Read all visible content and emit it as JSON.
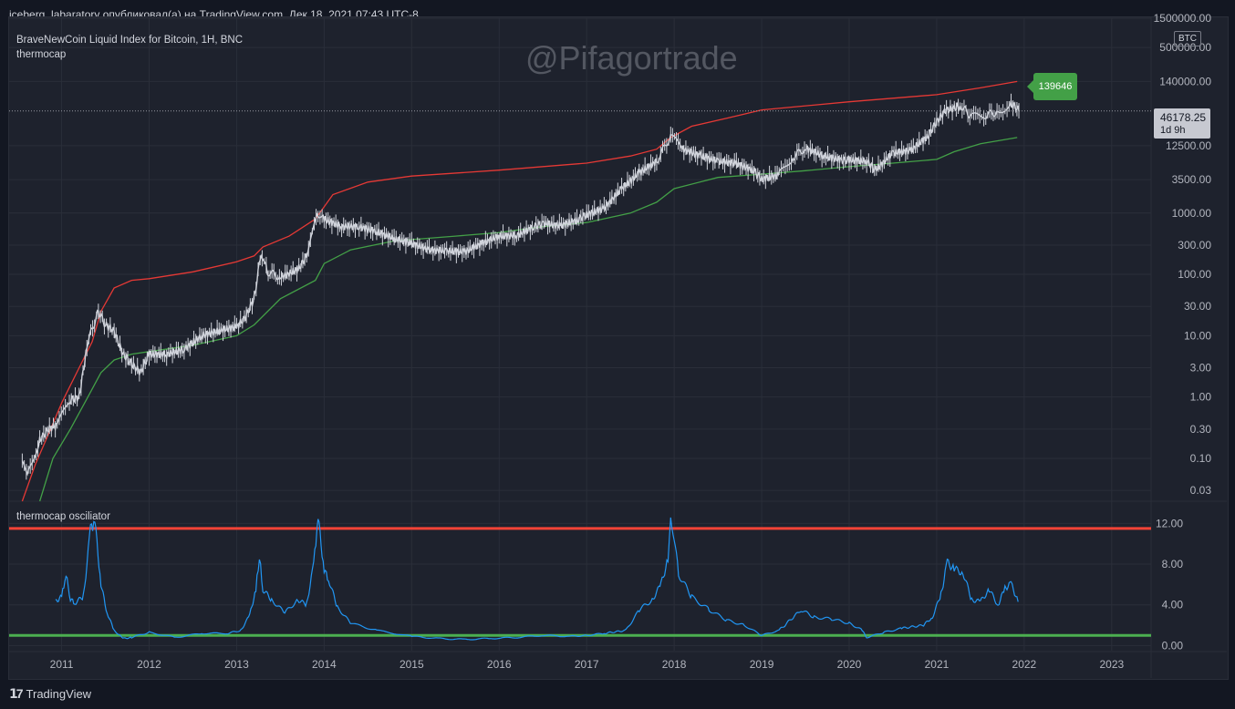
{
  "header": {
    "published_line": "iceberg_labaratory опубликовал(а) на TradingView.com, Дек 18, 2021 07:43 UTC-8"
  },
  "main_pane": {
    "symbol_title": "BraveNewCoin Liquid Index for Bitcoin, 1H, BNC",
    "indicator_name": "thermocap",
    "watermark": "@Pifagortrade",
    "currency_badge": "BTC",
    "last_price": "46178.25",
    "countdown": "1d 9h",
    "upper_band_value_label": "139646"
  },
  "osc_pane": {
    "title": "thermocap osciliator"
  },
  "footer": {
    "brand": "TradingView"
  },
  "colors": {
    "upper_band": "#e53935",
    "lower_band": "#43a047",
    "price": "#d1d4dc",
    "oscillator": "#2196f3",
    "osc_top_line": "#f44336",
    "osc_bottom_line": "#4caf50"
  },
  "chart_data": [
    {
      "type": "line",
      "title": "BraveNewCoin Liquid Index for Bitcoin, 1H, BNC — thermocap",
      "yscale": "log",
      "ylim": [
        0.02,
        1500000
      ],
      "y_ticks": [
        "1500000.00",
        "500000.00",
        "140000.00",
        "12500.00",
        "3500.00",
        "1000.00",
        "300.00",
        "100.00",
        "30.00",
        "10.00",
        "3.00",
        "1.00",
        "0.30",
        "0.10",
        "0.03"
      ],
      "x_ticks": [
        "2011",
        "2012",
        "2013",
        "2014",
        "2015",
        "2016",
        "2017",
        "2018",
        "2019",
        "2020",
        "2021",
        "2022",
        "2023"
      ],
      "xlim": [
        2010.4,
        2023.45
      ],
      "series": [
        {
          "name": "price",
          "x": [
            2010.55,
            2010.62,
            2010.75,
            2010.85,
            2010.95,
            2011.1,
            2011.2,
            2011.3,
            2011.42,
            2011.5,
            2011.6,
            2011.7,
            2011.8,
            2011.9,
            2012.0,
            2012.2,
            2012.4,
            2012.6,
            2012.8,
            2013.0,
            2013.1,
            2013.2,
            2013.28,
            2013.35,
            2013.5,
            2013.7,
            2013.8,
            2013.93,
            2014.0,
            2014.2,
            2014.4,
            2014.6,
            2014.8,
            2015.0,
            2015.2,
            2015.4,
            2015.6,
            2015.8,
            2016.0,
            2016.2,
            2016.4,
            2016.5,
            2016.7,
            2016.9,
            2017.0,
            2017.2,
            2017.4,
            2017.6,
            2017.8,
            2017.96,
            2018.1,
            2018.3,
            2018.5,
            2018.7,
            2018.9,
            2019.0,
            2019.2,
            2019.35,
            2019.5,
            2019.7,
            2019.9,
            2020.0,
            2020.2,
            2020.3,
            2020.5,
            2020.7,
            2020.9,
            2021.0,
            2021.1,
            2021.28,
            2021.4,
            2021.55,
            2021.7,
            2021.85,
            2021.95
          ],
          "values": [
            0.08,
            0.06,
            0.2,
            0.3,
            0.35,
            0.9,
            1.0,
            8,
            25,
            15,
            12,
            5,
            3.5,
            2.5,
            5,
            5,
            6,
            10,
            12,
            14,
            20,
            40,
            230,
            110,
            90,
            120,
            200,
            1000,
            800,
            600,
            600,
            500,
            380,
            320,
            250,
            240,
            230,
            320,
            420,
            430,
            600,
            680,
            620,
            780,
            950,
            1200,
            2500,
            4500,
            7000,
            18000,
            11000,
            8500,
            7000,
            6500,
            5000,
            3600,
            4200,
            8000,
            11500,
            8500,
            7300,
            7200,
            7000,
            5000,
            9500,
            10500,
            18000,
            31000,
            47000,
            55000,
            37000,
            39000,
            45000,
            60000,
            46178
          ]
        },
        {
          "name": "thermocap upper band",
          "x": [
            2010.55,
            2010.7,
            2010.85,
            2011.0,
            2011.2,
            2011.35,
            2011.45,
            2011.6,
            2011.8,
            2012.0,
            2012.5,
            2013.0,
            2013.2,
            2013.3,
            2013.6,
            2013.9,
            2014.1,
            2014.5,
            2015.0,
            2016.0,
            2017.0,
            2017.5,
            2017.8,
            2017.96,
            2018.2,
            2018.6,
            2019.0,
            2020.0,
            2021.0,
            2021.5,
            2021.92
          ],
          "values": [
            0.02,
            0.08,
            0.25,
            0.8,
            3,
            8,
            25,
            60,
            80,
            85,
            110,
            160,
            200,
            280,
            420,
            800,
            2000,
            3200,
            4000,
            5000,
            6500,
            8500,
            11000,
            17000,
            26000,
            35000,
            48000,
            65000,
            85000,
            110000,
            139646
          ]
        },
        {
          "name": "thermocap lower band",
          "x": [
            2010.75,
            2010.9,
            2011.1,
            2011.3,
            2011.45,
            2011.6,
            2011.8,
            2012.0,
            2012.5,
            2013.0,
            2013.2,
            2013.5,
            2013.9,
            2014.0,
            2014.3,
            2014.8,
            2015.5,
            2016.0,
            2016.5,
            2017.0,
            2017.5,
            2017.8,
            2018.0,
            2018.5,
            2019.0,
            2019.5,
            2020.0,
            2020.5,
            2021.0,
            2021.2,
            2021.5,
            2021.92
          ],
          "values": [
            0.02,
            0.1,
            0.3,
            1.0,
            2.5,
            4,
            5,
            5.5,
            7,
            10,
            15,
            40,
            80,
            150,
            250,
            350,
            420,
            480,
            600,
            700,
            1000,
            1500,
            2500,
            3800,
            4300,
            4900,
            5700,
            6500,
            7500,
            10000,
            13500,
            17000
          ]
        }
      ]
    },
    {
      "type": "line",
      "title": "thermocap osciliator",
      "ylim": [
        -0.5,
        14
      ],
      "y_ticks": [
        "12.00",
        "8.00",
        "4.00",
        "0.00"
      ],
      "x_ticks": [
        "2011",
        "2012",
        "2013",
        "2014",
        "2015",
        "2016",
        "2017",
        "2018",
        "2019",
        "2020",
        "2021",
        "2022",
        "2023"
      ],
      "xlim": [
        2010.4,
        2023.45
      ],
      "hlines": [
        {
          "name": "upper level",
          "value": 11.5
        },
        {
          "name": "lower level",
          "value": 1.0
        }
      ],
      "series": [
        {
          "name": "oscillator",
          "x": [
            2010.93,
            2011.0,
            2011.05,
            2011.1,
            2011.15,
            2011.25,
            2011.33,
            2011.38,
            2011.45,
            2011.52,
            2011.6,
            2011.7,
            2011.8,
            2012.0,
            2012.3,
            2012.6,
            2012.9,
            2013.05,
            2013.15,
            2013.22,
            2013.26,
            2013.3,
            2013.4,
            2013.55,
            2013.7,
            2013.8,
            2013.88,
            2013.93,
            2014.0,
            2014.05,
            2014.15,
            2014.3,
            2014.6,
            2015.0,
            2015.3,
            2015.6,
            2015.9,
            2016.2,
            2016.5,
            2016.8,
            2017.0,
            2017.2,
            2017.45,
            2017.6,
            2017.75,
            2017.85,
            2017.93,
            2017.96,
            2018.05,
            2018.2,
            2018.4,
            2018.6,
            2018.8,
            2019.0,
            2019.2,
            2019.45,
            2019.6,
            2019.8,
            2020.0,
            2020.15,
            2020.2,
            2020.4,
            2020.6,
            2020.85,
            2020.95,
            2021.05,
            2021.12,
            2021.2,
            2021.3,
            2021.4,
            2021.5,
            2021.6,
            2021.7,
            2021.78,
            2021.85,
            2021.93
          ],
          "values": [
            4.3,
            4.8,
            7.0,
            4.6,
            4.2,
            4.8,
            11.5,
            12.2,
            6.0,
            3.2,
            1.5,
            0.7,
            0.8,
            1.3,
            0.8,
            1.2,
            1.2,
            1.5,
            3.0,
            5.5,
            8.8,
            5.5,
            4.5,
            3.2,
            4.5,
            4.0,
            8.0,
            12.6,
            7.5,
            6.5,
            3.8,
            2.2,
            1.5,
            0.9,
            0.7,
            0.6,
            0.7,
            0.8,
            1.0,
            0.9,
            1.0,
            1.2,
            1.5,
            3.5,
            4.5,
            6.0,
            8.5,
            13.0,
            7.0,
            4.8,
            3.5,
            2.5,
            2.0,
            1.0,
            1.5,
            3.5,
            2.8,
            2.6,
            2.2,
            1.5,
            0.8,
            1.3,
            1.7,
            2.0,
            2.8,
            5.0,
            8.2,
            7.5,
            7.2,
            4.5,
            4.3,
            5.5,
            4.0,
            5.6,
            6.1,
            4.3
          ]
        }
      ]
    }
  ]
}
